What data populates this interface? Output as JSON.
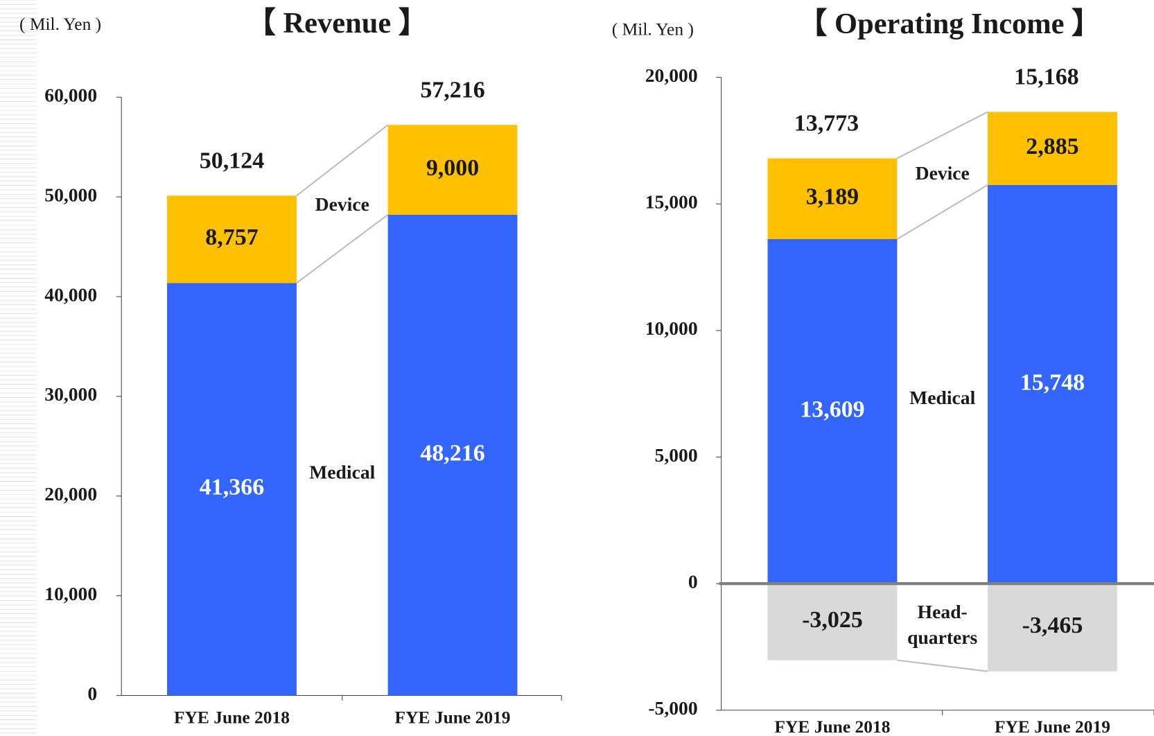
{
  "chart_data": [
    {
      "type": "stacked_bar",
      "title": "【 Revenue 】",
      "y_axis_label": "( Mil. Yen )",
      "categories": [
        "FYE June 2018",
        "FYE June 2019"
      ],
      "series": [
        {
          "name": "Medical",
          "color": "#3366ff",
          "label_color": "#ffffff",
          "values": [
            41366,
            48216
          ],
          "value_labels": [
            "41,366",
            "48,216"
          ]
        },
        {
          "name": "Device",
          "color": "#ffc000",
          "label_color": "#1a1a1a",
          "values": [
            8757,
            9000
          ],
          "value_labels": [
            "8,757",
            "9,000"
          ]
        }
      ],
      "totals": [
        50124,
        57216
      ],
      "total_labels": [
        "50,124",
        "57,216"
      ],
      "ylim": [
        0,
        60000
      ],
      "yticks": [
        0,
        {
          "value": 10000,
          "label": "10,000"
        },
        {
          "value": 20000,
          "label": "20,000"
        },
        {
          "value": 30000,
          "label": "30,000"
        },
        {
          "value": 40000,
          "label": "40,000"
        },
        {
          "value": 50000,
          "label": "50,000"
        },
        {
          "value": 60000,
          "label": "60,000"
        }
      ]
    },
    {
      "type": "stacked_bar",
      "title": "【 Operating Income 】",
      "y_axis_label": "( Mil. Yen )",
      "categories": [
        "FYE June 2018",
        "FYE June 2019"
      ],
      "series": [
        {
          "name": "Medical",
          "color": "#3366ff",
          "label_color": "#ffffff",
          "values": [
            13609,
            15748
          ],
          "value_labels": [
            "13,609",
            "15,748"
          ]
        },
        {
          "name": "Device",
          "color": "#ffc000",
          "label_color": "#1a1a1a",
          "values": [
            3189,
            2885
          ],
          "value_labels": [
            "3,189",
            "2,885"
          ]
        },
        {
          "name": "Head-quarters",
          "color": "#d9d9d9",
          "label_color": "#1a1a1a",
          "values": [
            -3025,
            -3465
          ],
          "value_labels": [
            "-3,025",
            "-3,465"
          ]
        }
      ],
      "totals": [
        13773,
        15168
      ],
      "total_labels": [
        "13,773",
        "15,168"
      ],
      "ylim": [
        -5000,
        20000
      ],
      "yticks": [
        {
          "value": -5000,
          "label": "-5,000"
        },
        0,
        {
          "value": 5000,
          "label": "5,000"
        },
        {
          "value": 10000,
          "label": "10,000"
        },
        {
          "value": 15000,
          "label": "15,000"
        },
        {
          "value": 20000,
          "label": "20,000"
        }
      ]
    }
  ]
}
